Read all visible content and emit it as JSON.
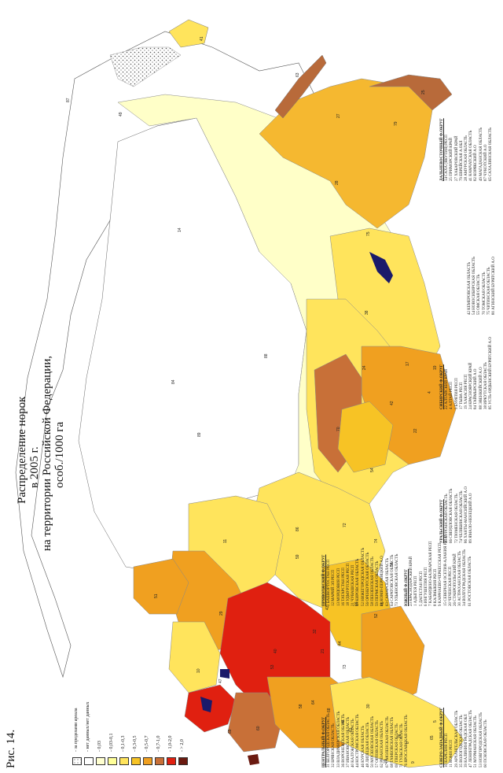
{
  "figure": {
    "label": "Рис. 14.",
    "title_lines": [
      "Распределение норок",
      "в 2005 г.",
      "на территории Российской Федерации,",
      "особ./1000 га"
    ]
  },
  "legend": [
    {
      "label": "- за пределами ареала",
      "color": "#ffffff",
      "pattern": "dots"
    },
    {
      "label": "- нет данных/нет данных",
      "color": "#ffffff",
      "pattern": "none"
    },
    {
      "label": "- 0,03",
      "color": "#ffffd0",
      "pattern": "none"
    },
    {
      "label": "- 0,03-0,1",
      "color": "#ffff99",
      "pattern": "none"
    },
    {
      "label": "- 0,1-0,3",
      "color": "#ffe45c",
      "pattern": "none"
    },
    {
      "label": "- 0,3-0,5",
      "color": "#f7c325",
      "pattern": "none"
    },
    {
      "label": "- 0,5-0,7",
      "color": "#f0a020",
      "pattern": "none"
    },
    {
      "label": "- 0,7-1,0",
      "color": "#c87038",
      "pattern": "none"
    },
    {
      "label": "- 1,0-2,0",
      "color": "#e02010",
      "pattern": "none"
    },
    {
      "label": "- > 2,0",
      "color": "#6a1a10",
      "pattern": "none"
    }
  ],
  "map_labels": [
    {
      "n": "41"
    },
    {
      "n": "63"
    },
    {
      "n": "25"
    },
    {
      "n": "27"
    },
    {
      "n": "79"
    },
    {
      "n": "49"
    },
    {
      "n": "87"
    },
    {
      "n": "28"
    },
    {
      "n": "14"
    },
    {
      "n": "75"
    },
    {
      "n": "38"
    },
    {
      "n": "88"
    },
    {
      "n": "84"
    },
    {
      "n": "24"
    },
    {
      "n": "17"
    },
    {
      "n": "19"
    },
    {
      "n": "4"
    },
    {
      "n": "42"
    },
    {
      "n": "70"
    },
    {
      "n": "22"
    },
    {
      "n": "54"
    },
    {
      "n": "89"
    },
    {
      "n": "72"
    },
    {
      "n": "86"
    },
    {
      "n": "66"
    },
    {
      "n": "74"
    },
    {
      "n": "45"
    },
    {
      "n": "11"
    },
    {
      "n": "59"
    },
    {
      "n": "56"
    },
    {
      "n": "29"
    },
    {
      "n": "43"
    },
    {
      "n": "51"
    },
    {
      "n": "53"
    },
    {
      "n": "10"
    },
    {
      "n": "47"
    },
    {
      "n": "69"
    },
    {
      "n": "60"
    },
    {
      "n": "32"
    },
    {
      "n": "40"
    },
    {
      "n": "44"
    },
    {
      "n": "52"
    },
    {
      "n": "21"
    },
    {
      "n": "73"
    },
    {
      "n": "64"
    },
    {
      "n": "58"
    },
    {
      "n": "68"
    },
    {
      "n": "48"
    },
    {
      "n": "61"
    },
    {
      "n": "30"
    },
    {
      "n": "26"
    },
    {
      "n": "23"
    },
    {
      "n": "5"
    },
    {
      "n": "9"
    },
    {
      "n": "8"
    },
    {
      "n": "65"
    }
  ],
  "districts": [
    {
      "title": "СЕВЕРО-ЗАПАДНЫЙ Ф.ОКРУГ",
      "items": [
        "10 КАРЕЛИЯ РЕСП",
        "11 КОМИ РЕСП",
        "29 АРХАНГЕЛЬСКАЯ ОБЛАСТЬ",
        "35 ВОЛОГОДСКАЯ ОБЛАСТЬ",
        "39 КАЛИНИНГРАДСКАЯ ОБЛ",
        "47 ЛЕНИНГРАДСКАЯ ОБЛАСТЬ",
        "51 МУРМАНСКАЯ ОБЛАСТЬ",
        "53 НОВГОРОДСКАЯ ОБЛАСТЬ",
        "60 ПСКОВСКАЯ ОБЛАСТЬ"
      ]
    },
    {
      "title": "ЦЕНТРАЛЬНЫЙ Ф.ОКРУГ",
      "items": [
        "31 БЕЛГОРОДСКАЯ ОБЛАСТЬ",
        "32 БРЯНСКАЯ ОБЛАСТЬ",
        "33 ВЛАДИМИРСКАЯ ОБЛАСТЬ",
        "36 ВОРОНЕЖСКАЯ ОБЛАСТЬ",
        "37 ИВАНОВСКАЯ ОБЛАСТЬ",
        "40 КАЛУЖСКАЯ ОБЛАСТЬ",
        "44 КОСТРОМСКАЯ ОБЛАСТЬ",
        "46 КУРСКАЯ ОБЛАСТЬ",
        "48 ЛИПЕЦКАЯ ОБЛАСТЬ",
        "50 МОСКОВСКАЯ ОБЛАСТЬ",
        "57 ОРЛОВСКАЯ ОБЛАСТЬ",
        "62 РЯЗАНСКАЯ ОБЛАСТЬ",
        "67 СМОЛЕНСКАЯ ОБЛАСТЬ",
        "68 ТАМБОВСКАЯ ОБЛАСТЬ",
        "69 ТВЕРСКАЯ ОБЛАСТЬ",
        "71 ТУЛЬСКАЯ ОБЛАСТЬ",
        "76 ЯРОСЛАВСКАЯ ОБЛАСТЬ"
      ]
    },
    {
      "title": "ПРИВОЛЖСКИЙ Ф.ОКРУГ",
      "items": [
        "2 БАШКОРТОСТАН РЕСП",
        "12 МАРИЙ ЭЛ РЕСП",
        "13 МОРДОВИЯ РЕСП",
        "16 ТАТАРСТАН РЕСП",
        "18 УДМУРТСКАЯ РЕСП",
        "21 ЧУВАШСКАЯ РЕСП",
        "43 КИРОВСКАЯ ОБЛАСТЬ",
        "52 НИЖЕГОРОДСКАЯ ОБЛАСТЬ",
        "56 ОРЕНБУРГСКАЯ ОБЛАСТЬ",
        "58 ПЕНЗЕНСКАЯ ОБЛАСТЬ",
        "59 ПЕРМСКАЯ ОБЛАСТЬ",
        "81 КОМИ-ПЕРМЯЦКИЙ А.О",
        "63 САМАРСКАЯ ОБЛАСТЬ",
        "64 САРАТОВСКАЯ ОБЛАСТЬ",
        "73 УЛЬЯНОВСКАЯ ОБЛАСТЬ"
      ]
    },
    {
      "title": "ЮЖНЫЙ Ф.ОКРУГ",
      "items": [
        "23 КРАСНОДАРСКИЙ КРАЙ",
        "1 АДЫГЕЯ РЕСП",
        "5 ДАГЕСТАН РЕСП",
        "6 ИНГУШЕТИЯ РЕСП",
        "7 КАБАРДИНО-БАЛКАРСКАЯ РЕСП",
        "8 КАЛМЫКИЯ РЕСП",
        "9 КАРАЧАЕВО-ЧЕРКЕССКАЯ РЕСП",
        "15 СЕВЕРНАЯ ОСЕТИЯ-АЛАНИЯ РЕСП",
        "20 ЧЕЧЕНСКАЯ РЕСП",
        "26 СТАВРОПОЛЬСКИЙ КРАЙ",
        "30 АСТРАХАНСКАЯ ОБЛАСТЬ",
        "34 ВОЛГОГРАДСКАЯ ОБЛАСТЬ",
        "61 РОСТОВСКАЯ ОБЛАСТЬ"
      ]
    },
    {
      "title": "УРАЛЬСКИЙ Ф.ОКРУГ",
      "items": [
        "45 КУРГАНСКАЯ ОБЛАСТЬ",
        "66 СВЕРДЛОВСКАЯ ОБЛАСТЬ",
        "72 ТЮМЕНСКАЯ ОБЛАСТЬ",
        "74 ЧЕЛЯБИНСКАЯ ОБЛАСТЬ",
        "86 ХАНТЫ-МАНСИЙСКИЙ А.О",
        "89 ЯМАЛО-НЕНЕЦКИЙ А.О"
      ]
    },
    {
      "title": "СИБИРСКИЙ Ф.ОКРУГ",
      "items": [
        "22 АЛТАЙСКИЙ КРАЙ",
        "4 АЛТАЙ РЕСП",
        "3 БУРЯТИЯ РЕСП",
        "17 ТЫВА РЕСП",
        "19 ХАКАСИЯ РЕСП",
        "24 КРАСНОЯРСКИЙ КРАЙ",
        "84 ТАЙМЫРСКИЙ А.О",
        "88 ЭВЕНКИЙСКИЙ А.О",
        "38 ИРКУТСКАЯ ОБЛАСТЬ",
        "85 УСТЬ-ОРДЫНСКИЙ БУРЯТСКИЙ А.О"
      ]
    },
    {
      "title": "",
      "items": [
        "42 КЕМЕРОВСКАЯ ОБЛАСТЬ",
        "54 НОВОСИБИРСКАЯ ОБЛАСТЬ",
        "55 ОМСКАЯ ОБЛАСТЬ",
        "70 ТОМСКАЯ ОБЛАСТЬ",
        "75 ЧИТИНСКАЯ ОБЛАСТЬ",
        "80 АГИНСКИЙ БУРЯТСКИЙ А.О"
      ]
    },
    {
      "title": "ДАЛЬНЕВОСТОЧНЫЙ Ф.ОКРУГ",
      "items": [
        "14 САХА (ЯКУТИЯ) РЕСП",
        "25 ПРИМОРСКИЙ КРАЙ",
        "27 ХАБАРОВСКИЙ КРАЙ",
        "79 ЕВРЕЙСКАЯ А.ОБЛ",
        "28 АМУРСКАЯ ОБЛАСТЬ",
        "41 КАМЧАТСКАЯ ОБЛАСТЬ",
        "82 КОРЯКСКИЙ А.О",
        "49 МАГАДАНСКАЯ ОБЛАСТЬ",
        "87 ЧУКОТСКИЙ А.О",
        "65 САХАЛИНСКАЯ ОБЛАСТЬ"
      ]
    }
  ]
}
